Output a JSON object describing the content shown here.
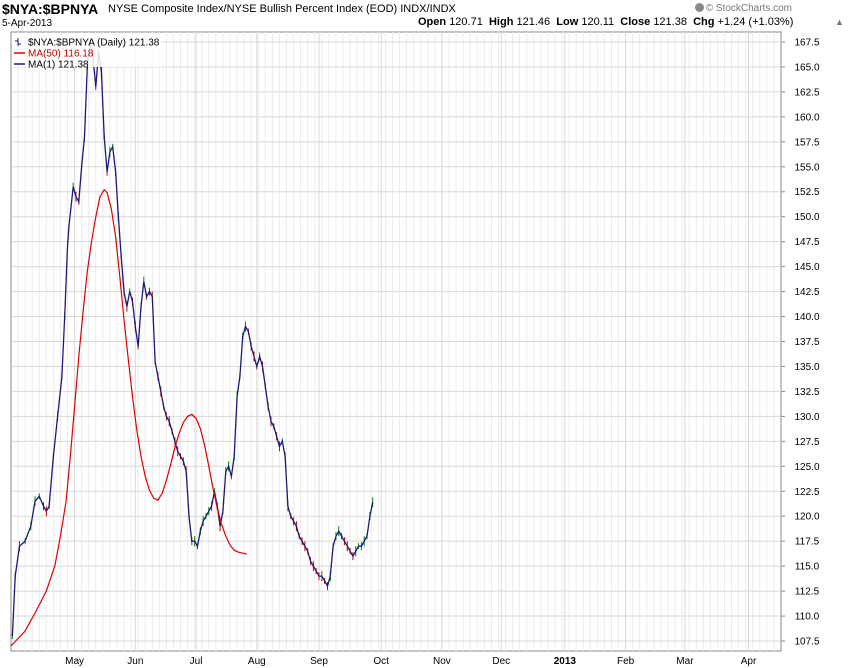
{
  "header": {
    "symbol": "$NYA:$BPNYA",
    "description": "NYSE Composite Index/NYSE Bullish Percent Index (EOD) INDX/INDX",
    "date": "5-Apr-2013",
    "open_label": "Open",
    "open": "120.71",
    "high_label": "High",
    "high": "121.46",
    "low_label": "Low",
    "low": "120.11",
    "close_label": "Close",
    "close": "121.38",
    "chg_label": "Chg",
    "chg": "+1.24 (+1.03%)",
    "arrow": "▲",
    "logo": "© StockCharts.com"
  },
  "legend": [
    {
      "label": "$NYA:$BPNYA (Daily) 121.38",
      "color": "#1a1a7a",
      "marker": "ohlc"
    },
    {
      "label": "MA(50) 116.18",
      "color": "#e00000",
      "marker": "line"
    },
    {
      "label": "MA(1) 121.38",
      "color": "#1a1a7a",
      "marker": "line"
    }
  ],
  "chart_data": {
    "type": "line",
    "title": "$NYA:$BPNYA",
    "ylim": [
      106.5,
      168.5
    ],
    "y_ticks": [
      107.5,
      110.0,
      112.5,
      115.0,
      117.5,
      120.0,
      122.5,
      125.0,
      127.5,
      130.0,
      132.5,
      135.0,
      137.5,
      140.0,
      142.5,
      145.0,
      147.5,
      150.0,
      152.5,
      155.0,
      157.5,
      160.0,
      162.5,
      165.0,
      167.5
    ],
    "x_tick_labels": [
      "May",
      "Jun",
      "Jul",
      "Aug",
      "Sep",
      "Oct",
      "Nov",
      "Dec",
      "2013",
      "Feb",
      "Mar",
      "Apr"
    ],
    "x_ticks_day": [
      20,
      63,
      106,
      149,
      193,
      237,
      280,
      322,
      367,
      410,
      452,
      497
    ],
    "x_range_day": [
      -25,
      520
    ],
    "grid": true,
    "colors": {
      "price": "#1a1a7a",
      "ma50": "#e00000",
      "grid": "#d8d8d8",
      "up_bar": "#008800",
      "down_bar": "#cc0000"
    },
    "series": [
      {
        "name": "MA(1) 121.38",
        "points": [
          [
            -24,
            108.0
          ],
          [
            -22,
            114.0
          ],
          [
            -19,
            117.0
          ],
          [
            -15,
            117.5
          ],
          [
            -11,
            119.0
          ],
          [
            -8,
            121.5
          ],
          [
            -5,
            122.0
          ],
          [
            -2,
            121.0
          ],
          [
            0,
            120.5
          ],
          [
            2,
            121.0
          ],
          [
            5,
            126.0
          ],
          [
            8,
            130.0
          ],
          [
            11,
            134.0
          ],
          [
            13,
            140.0
          ],
          [
            15,
            147.0
          ],
          [
            16,
            149.0
          ],
          [
            19,
            153.0
          ],
          [
            21,
            152.0
          ],
          [
            23,
            151.5
          ],
          [
            25,
            155.0
          ],
          [
            27,
            158.0
          ],
          [
            29,
            165.0
          ],
          [
            31,
            167.5
          ],
          [
            33,
            166.0
          ],
          [
            35,
            163.0
          ],
          [
            37,
            166.5
          ],
          [
            39,
            164.5
          ],
          [
            41,
            158.0
          ],
          [
            43,
            154.5
          ],
          [
            45,
            156.5
          ],
          [
            47,
            157.0
          ],
          [
            49,
            154.5
          ],
          [
            51,
            150.0
          ],
          [
            53,
            146.0
          ],
          [
            55,
            142.5
          ],
          [
            57,
            141.0
          ],
          [
            59,
            142.5
          ],
          [
            61,
            141.5
          ],
          [
            63,
            139.0
          ],
          [
            65,
            137.0
          ],
          [
            67,
            141.0
          ],
          [
            69,
            143.5
          ],
          [
            71,
            142.0
          ],
          [
            73,
            142.5
          ],
          [
            75,
            142.0
          ],
          [
            77,
            135.5
          ],
          [
            79,
            134.0
          ],
          [
            81,
            132.5
          ],
          [
            83,
            131.0
          ],
          [
            85,
            130.0
          ],
          [
            87,
            129.5
          ],
          [
            89,
            128.5
          ],
          [
            91,
            127.5
          ],
          [
            93,
            126.5
          ],
          [
            95,
            126.0
          ],
          [
            97,
            125.5
          ],
          [
            99,
            124.5
          ],
          [
            101,
            120.0
          ],
          [
            103,
            117.5
          ],
          [
            105,
            117.5
          ],
          [
            107,
            117.0
          ],
          [
            109,
            118.5
          ],
          [
            111,
            119.5
          ],
          [
            113,
            120.0
          ],
          [
            115,
            120.5
          ],
          [
            117,
            121.0
          ],
          [
            119,
            122.5
          ],
          [
            121,
            121.0
          ],
          [
            123,
            119.0
          ],
          [
            125,
            120.5
          ],
          [
            127,
            124.5
          ],
          [
            129,
            125.0
          ],
          [
            131,
            124.0
          ],
          [
            133,
            126.0
          ],
          [
            135,
            132.0
          ],
          [
            137,
            134.0
          ],
          [
            139,
            138.0
          ],
          [
            141,
            139.0
          ],
          [
            143,
            138.5
          ],
          [
            145,
            137.0
          ],
          [
            147,
            136.0
          ],
          [
            149,
            135.0
          ],
          [
            151,
            136.0
          ],
          [
            153,
            135.0
          ],
          [
            155,
            133.0
          ],
          [
            157,
            131.0
          ],
          [
            159,
            129.5
          ],
          [
            161,
            129.0
          ],
          [
            163,
            128.0
          ],
          [
            165,
            127.0
          ],
          [
            167,
            127.5
          ],
          [
            169,
            126.0
          ],
          [
            171,
            121.0
          ],
          [
            173,
            120.0
          ],
          [
            175,
            119.5
          ],
          [
            177,
            119.0
          ],
          [
            179,
            118.0
          ],
          [
            181,
            117.5
          ],
          [
            183,
            117.0
          ],
          [
            185,
            116.5
          ],
          [
            187,
            115.5
          ],
          [
            189,
            115.0
          ],
          [
            191,
            114.5
          ],
          [
            193,
            114.0
          ],
          [
            195,
            114.0
          ],
          [
            197,
            113.5
          ],
          [
            199,
            113.0
          ],
          [
            201,
            114.0
          ],
          [
            203,
            117.0
          ],
          [
            205,
            118.0
          ],
          [
            207,
            118.5
          ],
          [
            209,
            118.0
          ],
          [
            211,
            117.5
          ],
          [
            213,
            117.0
          ],
          [
            215,
            116.5
          ],
          [
            217,
            116.0
          ],
          [
            219,
            116.5
          ],
          [
            221,
            117.0
          ],
          [
            223,
            117.0
          ],
          [
            225,
            117.5
          ],
          [
            227,
            118.0
          ],
          [
            229,
            120.0
          ],
          [
            231,
            121.4
          ]
        ]
      },
      {
        "name": "MA(50) 116.18",
        "points": [
          [
            -25,
            107.0
          ],
          [
            -15,
            108.5
          ],
          [
            -8,
            110.3
          ],
          [
            0,
            112.5
          ],
          [
            6,
            115.0
          ],
          [
            10,
            118.0
          ],
          [
            14,
            121.5
          ],
          [
            17,
            126.0
          ],
          [
            20,
            131.0
          ],
          [
            23,
            136.0
          ],
          [
            26,
            140.5
          ],
          [
            29,
            144.5
          ],
          [
            32,
            147.5
          ],
          [
            35,
            150.0
          ],
          [
            38,
            152.0
          ],
          [
            41,
            152.7
          ],
          [
            43,
            152.4
          ],
          [
            46,
            150.8
          ],
          [
            49,
            148.0
          ],
          [
            52,
            144.0
          ],
          [
            55,
            139.7
          ],
          [
            58,
            135.7
          ],
          [
            61,
            132.0
          ],
          [
            64,
            128.7
          ],
          [
            67,
            126.0
          ],
          [
            70,
            124.0
          ],
          [
            73,
            122.6
          ],
          [
            76,
            121.8
          ],
          [
            79,
            121.6
          ],
          [
            82,
            122.3
          ],
          [
            85,
            123.6
          ],
          [
            88,
            125.2
          ],
          [
            91,
            126.9
          ],
          [
            94,
            128.3
          ],
          [
            97,
            129.4
          ],
          [
            100,
            130.0
          ],
          [
            103,
            130.2
          ],
          [
            106,
            129.8
          ],
          [
            109,
            128.8
          ],
          [
            112,
            127.1
          ],
          [
            115,
            125.0
          ],
          [
            118,
            122.8
          ],
          [
            121,
            120.8
          ],
          [
            124,
            119.2
          ],
          [
            127,
            118.0
          ],
          [
            130,
            117.1
          ],
          [
            133,
            116.6
          ],
          [
            136,
            116.4
          ],
          [
            139,
            116.3
          ],
          [
            142,
            116.2
          ]
        ]
      }
    ]
  }
}
